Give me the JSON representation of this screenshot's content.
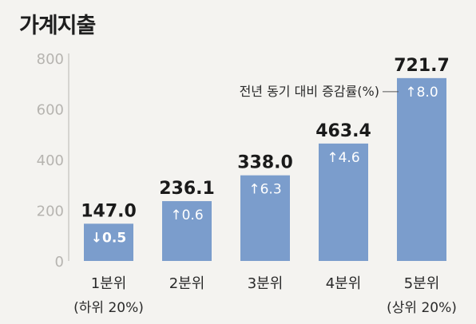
{
  "chart_data": {
    "type": "bar",
    "title": "가계지출",
    "categories": [
      "1분위",
      "2분위",
      "3분위",
      "4분위",
      "5분위"
    ],
    "category_notes": [
      "(하위 20%)",
      "",
      "",
      "",
      "(상위 20%)"
    ],
    "values": [
      147.0,
      236.1,
      338.0,
      463.4,
      721.7
    ],
    "value_labels": [
      "147.0",
      "236.1",
      "338.0",
      "463.4",
      "721.7"
    ],
    "change_labels": [
      "↓0.5",
      "↑0.6",
      "↑6.3",
      "↑4.6",
      "↑8.0"
    ],
    "change_direction": [
      "down",
      "up",
      "up",
      "up",
      "up"
    ],
    "annotation": "전년 동기 대비 증감률(%)",
    "yticks": [
      0,
      200,
      400,
      600,
      800
    ],
    "ylim": [
      0,
      800
    ],
    "grid": false,
    "xlabel": "",
    "ylabel": "",
    "bar_color": "#7b9dcc",
    "axis_color": "#b6b4b0"
  }
}
